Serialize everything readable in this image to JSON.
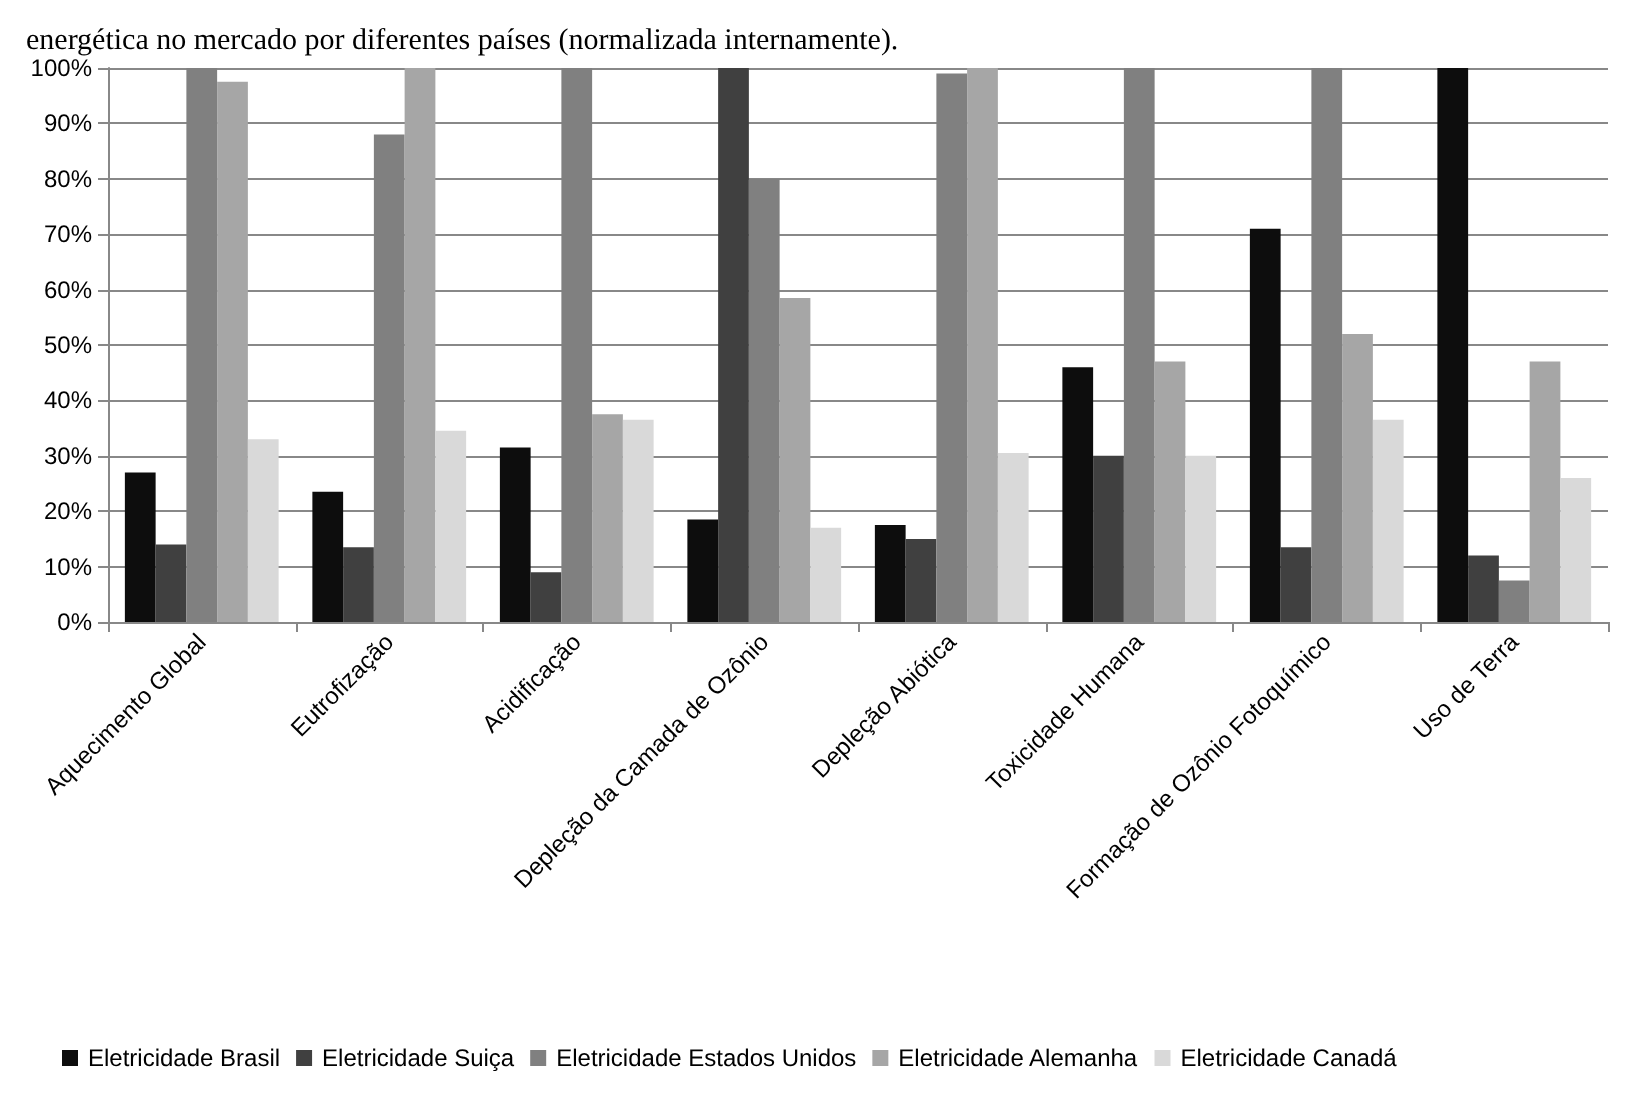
{
  "chart_data": {
    "type": "bar",
    "title": "energética no mercado por diferentes países (normalizada internamente).",
    "categories": [
      "Aquecimento Global",
      "Eutrofização",
      "Acidificação",
      "Depleção da Camada de Ozônio",
      "Depleção Abiótica",
      "Toxicidade Humana",
      "Formação de Ozônio Fotoquímico",
      "Uso de Terra"
    ],
    "series": [
      {
        "name": "Eletricidade Brasil",
        "color": "#0d0d0d",
        "values": [
          27,
          23.5,
          31.5,
          18.5,
          17.5,
          46,
          71,
          100
        ]
      },
      {
        "name": "Eletricidade Suiça",
        "color": "#404040",
        "values": [
          14,
          13.5,
          9,
          100,
          15,
          30,
          13.5,
          12
        ]
      },
      {
        "name": "Eletricidade Estados Unidos",
        "color": "#808080",
        "values": [
          100,
          88,
          100,
          80,
          99,
          100,
          100,
          7.5
        ]
      },
      {
        "name": "Eletricidade Alemanha",
        "color": "#a6a6a6",
        "values": [
          97.5,
          100,
          37.5,
          58.5,
          100,
          47,
          52,
          47
        ]
      },
      {
        "name": "Eletricidade Canadá",
        "color": "#d9d9d9",
        "values": [
          33,
          34.5,
          36.5,
          17,
          30.5,
          30,
          36.5,
          26
        ]
      }
    ],
    "ylim": [
      0,
      100
    ],
    "yticks": [
      {
        "value": 0,
        "label": "0%"
      },
      {
        "value": 10,
        "label": "10%"
      },
      {
        "value": 20,
        "label": "20%"
      },
      {
        "value": 30,
        "label": "30%"
      },
      {
        "value": 40,
        "label": "40%"
      },
      {
        "value": 50,
        "label": "50%"
      },
      {
        "value": 60,
        "label": "60%"
      },
      {
        "value": 70,
        "label": "70%"
      },
      {
        "value": 80,
        "label": "80%"
      },
      {
        "value": 90,
        "label": "90%"
      },
      {
        "value": 100,
        "label": "100%"
      }
    ],
    "grid": "y",
    "legend": "bottom"
  }
}
